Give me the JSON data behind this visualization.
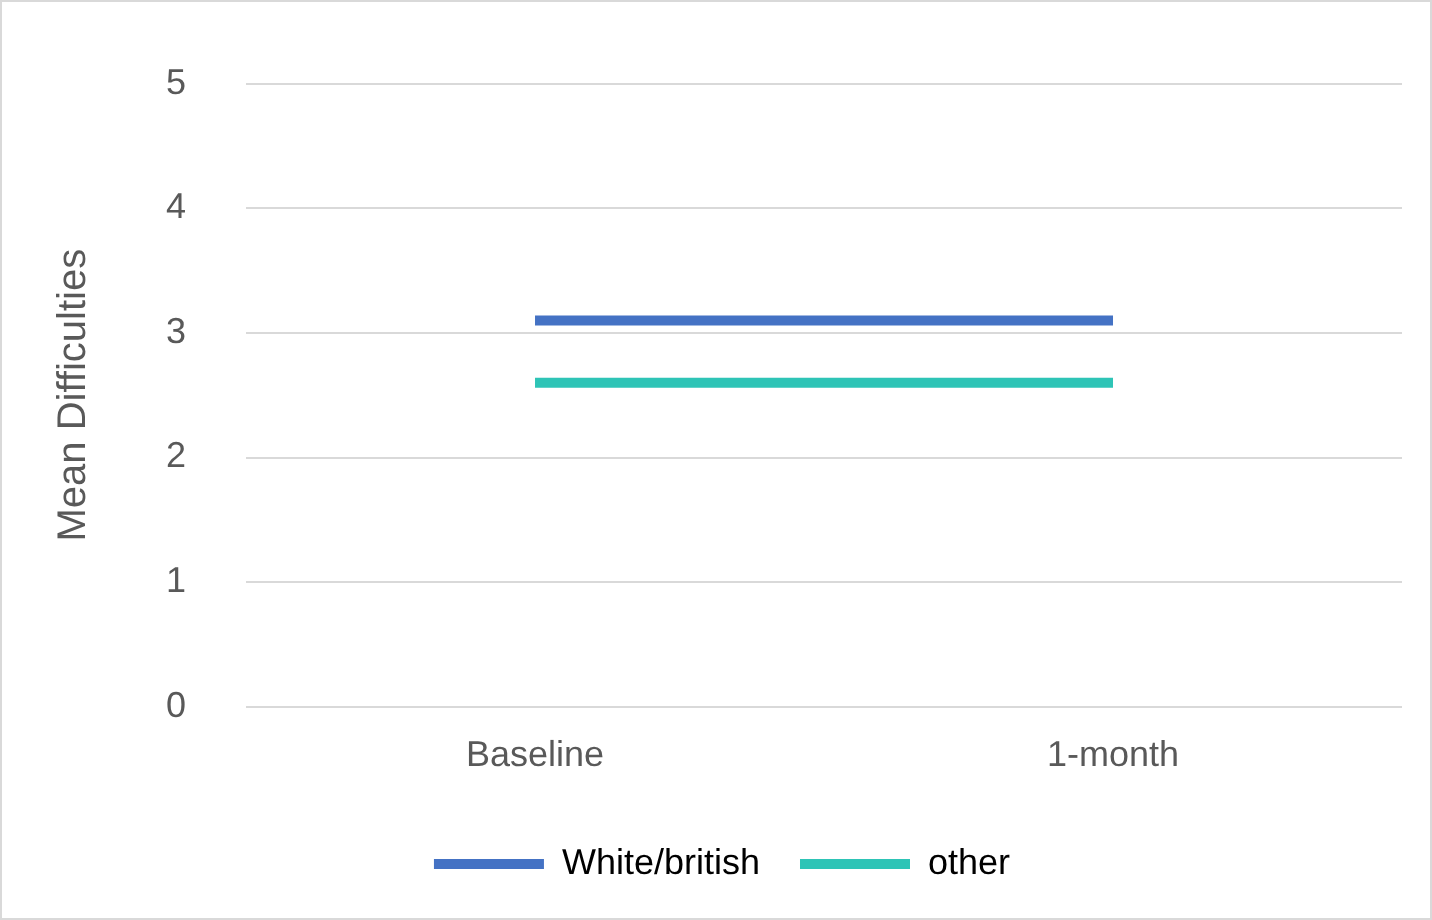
{
  "chart_data": {
    "type": "line",
    "ylabel": "Mean Difficulties",
    "categories": [
      "Baseline",
      "1-month"
    ],
    "series": [
      {
        "name": "White/british",
        "color": "#4472c4",
        "values": [
          3.1,
          3.1
        ]
      },
      {
        "name": "other",
        "color": "#2ec4b6",
        "values": [
          2.6,
          2.6
        ]
      }
    ],
    "ylim": [
      0,
      5
    ],
    "yticks": [
      0,
      1,
      2,
      3,
      4,
      5
    ],
    "grid": "y",
    "legend": "bottom",
    "marker": "none"
  }
}
